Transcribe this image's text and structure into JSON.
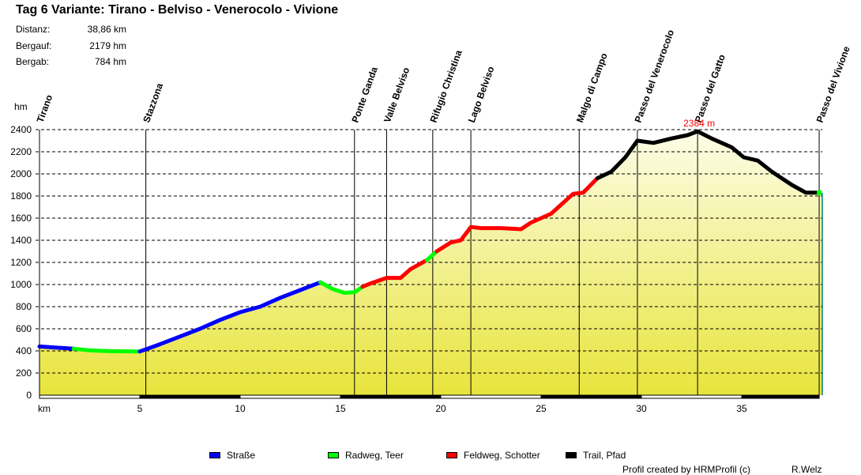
{
  "header": {
    "title": "Tag 6 Variante:  Tirano - Belviso - Venerocolo - Vivione",
    "stats": [
      {
        "label": "Distanz:",
        "value": "38,86 km"
      },
      {
        "label": "Bergauf:",
        "value": "2179 hm"
      },
      {
        "label": "Bergab:",
        "value": "784 hm"
      }
    ]
  },
  "legend": [
    {
      "label": "Straße",
      "color": "#0000ff"
    },
    {
      "label": "Radweg, Teer",
      "color": "#00ff00"
    },
    {
      "label": "Feldweg, Schotter",
      "color": "#ff0000"
    },
    {
      "label": "Trail, Pfad",
      "color": "#000000"
    }
  ],
  "footer": {
    "credit": "Profil created by HRMProfil (c)",
    "author": "R.Welz"
  },
  "chart_data": {
    "type": "area",
    "title": "Tag 6 Variante:  Tirano - Belviso - Venerocolo - Vivione",
    "xlabel": "km",
    "ylabel": "hm",
    "xlim": [
      0,
      38.86
    ],
    "ylim": [
      0,
      2400
    ],
    "x_ticks": [
      5,
      10,
      15,
      20,
      25,
      30,
      35
    ],
    "y_ticks": [
      0,
      200,
      400,
      600,
      800,
      1000,
      1200,
      1400,
      1600,
      1800,
      2000,
      2200,
      2400
    ],
    "grid": "horizontal dashed",
    "max_annotation": {
      "km": 32.8,
      "elevation": 2384,
      "label": "2384 m",
      "color": "#ff0000"
    },
    "waypoints": [
      {
        "name": "Tirano",
        "km": 0
      },
      {
        "name": "Stazzona",
        "km": 5.3
      },
      {
        "name": "Ponte Ganda",
        "km": 15.7
      },
      {
        "name": "Valle Belviso",
        "km": 17.3
      },
      {
        "name": "Rifugio Christina",
        "km": 19.6
      },
      {
        "name": "Lago Belviso",
        "km": 21.5
      },
      {
        "name": "Malgo di Campo",
        "km": 26.9
      },
      {
        "name": "Passo del Venerocolo",
        "km": 29.8
      },
      {
        "name": "Passo del Gatto",
        "km": 32.8
      },
      {
        "name": "Passo del Vivione",
        "km": 38.86
      }
    ],
    "series": [
      {
        "name": "Straße",
        "color": "#0000ff",
        "points": [
          [
            0,
            440
          ],
          [
            0.8,
            430
          ],
          [
            1.7,
            420
          ]
        ]
      },
      {
        "name": "Radweg, Teer",
        "color": "#00ff00",
        "points": [
          [
            1.7,
            420
          ],
          [
            2.5,
            405
          ],
          [
            3.5,
            398
          ],
          [
            5,
            395
          ]
        ]
      },
      {
        "name": "Straße",
        "color": "#0000ff",
        "points": [
          [
            5,
            395
          ],
          [
            6,
            460
          ],
          [
            7,
            530
          ],
          [
            8,
            600
          ],
          [
            9,
            680
          ],
          [
            10,
            750
          ],
          [
            11,
            800
          ],
          [
            12,
            880
          ],
          [
            13,
            950
          ],
          [
            14,
            1020
          ]
        ]
      },
      {
        "name": "Radweg, Teer",
        "color": "#00ff00",
        "points": [
          [
            14,
            1020
          ],
          [
            14.6,
            960
          ],
          [
            15.2,
            925
          ],
          [
            15.7,
            930
          ],
          [
            16.1,
            980
          ]
        ]
      },
      {
        "name": "Feldweg, Schotter",
        "color": "#ff0000",
        "points": [
          [
            16.1,
            980
          ],
          [
            16.5,
            1010
          ],
          [
            17.3,
            1060
          ],
          [
            18,
            1060
          ],
          [
            18.5,
            1140
          ],
          [
            19.3,
            1220
          ]
        ]
      },
      {
        "name": "Radweg, Teer",
        "color": "#00ff00",
        "points": [
          [
            19.3,
            1220
          ],
          [
            19.8,
            1300
          ]
        ]
      },
      {
        "name": "Feldweg, Schotter",
        "color": "#ff0000",
        "points": [
          [
            19.8,
            1300
          ],
          [
            20.5,
            1380
          ],
          [
            21,
            1400
          ],
          [
            21.5,
            1520
          ],
          [
            22,
            1510
          ],
          [
            23,
            1510
          ],
          [
            24,
            1500
          ],
          [
            24.5,
            1560
          ],
          [
            25,
            1600
          ],
          [
            25.5,
            1640
          ],
          [
            26.6,
            1820
          ],
          [
            27.1,
            1830
          ],
          [
            27.8,
            1960
          ]
        ]
      },
      {
        "name": "Trail, Pfad",
        "color": "#000000",
        "points": [
          [
            27.8,
            1960
          ],
          [
            28.5,
            2020
          ],
          [
            29.2,
            2150
          ],
          [
            29.8,
            2300
          ],
          [
            30.6,
            2280
          ],
          [
            31.5,
            2320
          ],
          [
            32.3,
            2350
          ],
          [
            32.8,
            2384
          ],
          [
            33.5,
            2320
          ],
          [
            34.5,
            2240
          ],
          [
            35.1,
            2150
          ],
          [
            35.8,
            2120
          ],
          [
            36.5,
            2020
          ],
          [
            37.5,
            1900
          ],
          [
            38.2,
            1830
          ],
          [
            38.7,
            1830
          ]
        ]
      },
      {
        "name": "Radweg, Teer",
        "color": "#00ff00",
        "points": [
          [
            38.86,
            1830
          ]
        ]
      }
    ]
  }
}
